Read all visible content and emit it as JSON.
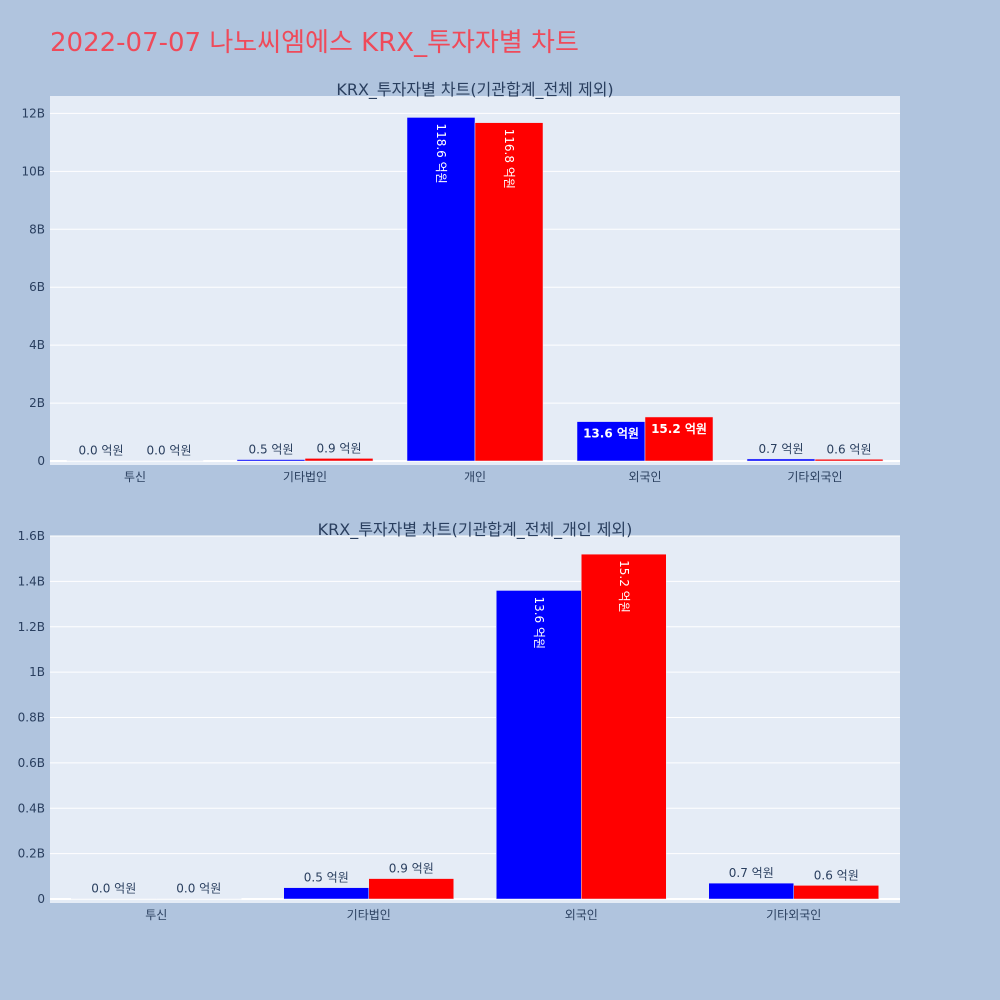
{
  "page_title": "2022-07-07 나노씨엠에스 KRX_투자자별 차트",
  "colors": {
    "buy": "#0000ff",
    "sell": "#ff0000",
    "plot_bg": "#e5ecf6",
    "page_bg": "#b0c4de"
  },
  "chart_data": [
    {
      "type": "bar",
      "title": "KRX_투자자별 차트(기관합계_전체 제외)",
      "categories": [
        "투신",
        "기타법인",
        "개인",
        "외국인",
        "기타외국인"
      ],
      "ylim": [
        0,
        12600000000
      ],
      "yticks": [
        {
          "value": 0,
          "label": "0"
        },
        {
          "value": 2000000000,
          "label": "2B"
        },
        {
          "value": 4000000000,
          "label": "4B"
        },
        {
          "value": 6000000000,
          "label": "6B"
        },
        {
          "value": 8000000000,
          "label": "8B"
        },
        {
          "value": 10000000000,
          "label": "10B"
        },
        {
          "value": 12000000000,
          "label": "12B"
        }
      ],
      "grid": true,
      "series": [
        {
          "color": "#0000ff",
          "values": [
            1000000,
            50000000,
            11860000000,
            1360000000,
            70000000
          ],
          "labels": [
            "0.0 억원",
            "0.5 억원",
            "118.6 억원",
            "13.6 억원",
            "0.7 억원"
          ]
        },
        {
          "color": "#ff0000",
          "values": [
            1000000,
            90000000,
            11680000000,
            1520000000,
            60000000
          ],
          "labels": [
            "0.0 억원",
            "0.9 억원",
            "116.8 억원",
            "15.2 억원",
            "0.6 억원"
          ]
        }
      ]
    },
    {
      "type": "bar",
      "title": "KRX_투자자별 차트(기관합계_전체_개인 제외)",
      "categories": [
        "투신",
        "기타법인",
        "외국인",
        "기타외국인"
      ],
      "ylim": [
        0,
        1600000000
      ],
      "yticks": [
        {
          "value": 0,
          "label": "0"
        },
        {
          "value": 200000000,
          "label": "0.2B"
        },
        {
          "value": 400000000,
          "label": "0.4B"
        },
        {
          "value": 600000000,
          "label": "0.6B"
        },
        {
          "value": 800000000,
          "label": "0.8B"
        },
        {
          "value": 1000000000,
          "label": "1B"
        },
        {
          "value": 1200000000,
          "label": "1.2B"
        },
        {
          "value": 1400000000,
          "label": "1.4B"
        },
        {
          "value": 1600000000,
          "label": "1.6B"
        }
      ],
      "grid": true,
      "series": [
        {
          "color": "#0000ff",
          "values": [
            1000000,
            50000000,
            1360000000,
            70000000
          ],
          "labels": [
            "0.0 억원",
            "0.5 억원",
            "13.6 억원",
            "0.7 억원"
          ]
        },
        {
          "color": "#ff0000",
          "values": [
            1000000,
            90000000,
            1520000000,
            60000000
          ],
          "labels": [
            "0.0 억원",
            "0.9 억원",
            "15.2 억원",
            "0.6 억원"
          ]
        }
      ]
    }
  ]
}
